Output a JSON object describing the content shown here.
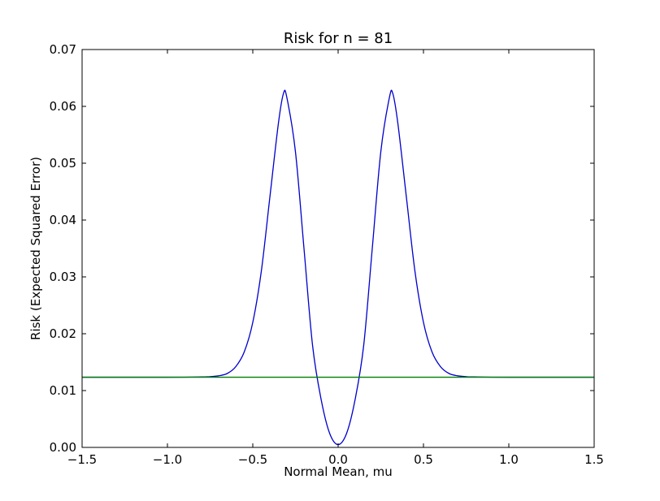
{
  "chart_data": {
    "type": "line",
    "title": "Risk for n = 81",
    "xlabel": "Normal Mean, mu",
    "ylabel": "Risk (Expected Squared Error)",
    "xlim": [
      -1.5,
      1.5
    ],
    "ylim": [
      0,
      0.07
    ],
    "xticks": [
      -1.5,
      -1.0,
      -0.5,
      0.0,
      0.5,
      1.0,
      1.5
    ],
    "xtick_labels": [
      "−1.5",
      "−1.0",
      "−0.5",
      "0.0",
      "0.5",
      "1.0",
      "1.5"
    ],
    "yticks": [
      0,
      0.01,
      0.02,
      0.03,
      0.04,
      0.05,
      0.06,
      0.07
    ],
    "ytick_labels": [
      "0.00",
      "0.01",
      "0.02",
      "0.03",
      "0.04",
      "0.05",
      "0.06",
      "0.07"
    ],
    "grid": false,
    "legend": "none",
    "series": [
      {
        "color": "#0000cc",
        "x": [
          -1.5,
          -1.0,
          -0.8,
          -0.75,
          -0.7,
          -0.65,
          -0.6,
          -0.55,
          -0.5,
          -0.45,
          -0.4,
          -0.35,
          -0.32,
          -0.3,
          -0.25,
          -0.2,
          -0.15,
          -0.1,
          -0.05,
          0.0,
          0.05,
          0.1,
          0.15,
          0.2,
          0.25,
          0.3,
          0.32,
          0.35,
          0.4,
          0.45,
          0.5,
          0.55,
          0.6,
          0.65,
          0.7,
          0.75,
          0.8,
          1.0,
          1.5
        ],
        "y": [
          0.01235,
          0.01235,
          0.0124,
          0.01245,
          0.0126,
          0.013,
          0.0142,
          0.0168,
          0.022,
          0.031,
          0.044,
          0.057,
          0.0623,
          0.0615,
          0.052,
          0.035,
          0.018,
          0.0085,
          0.0025,
          0.0005,
          0.0025,
          0.0085,
          0.018,
          0.035,
          0.052,
          0.0615,
          0.0623,
          0.057,
          0.044,
          0.031,
          0.022,
          0.0168,
          0.0142,
          0.013,
          0.0126,
          0.01245,
          0.0124,
          0.01235,
          0.01235
        ]
      },
      {
        "color": "#007f00",
        "x": [
          -1.5,
          1.5
        ],
        "y": [
          0.01235,
          0.01235
        ]
      }
    ]
  }
}
